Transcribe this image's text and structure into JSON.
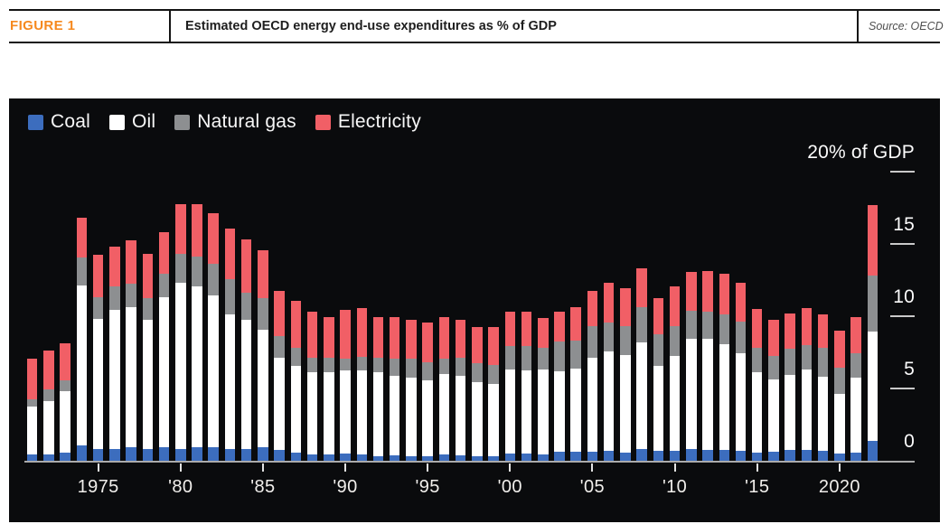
{
  "header": {
    "figure_label": "FIGURE 1",
    "title": "Estimated OECD energy end-use expenditures as % of GDP",
    "source": "Source: OECD"
  },
  "panel": {
    "background": "#0a0b0d"
  },
  "chart_data": {
    "type": "bar",
    "stacked": true,
    "title": "Estimated OECD energy end-use expenditures as % of GDP",
    "legend_position": "top-left",
    "grid": false,
    "ylim": [
      0,
      20
    ],
    "y_axis_top_label": "20% of GDP",
    "y_ticks": [
      {
        "value": 20,
        "label": "20% of GDP",
        "dash": true
      },
      {
        "value": 15,
        "label": "15",
        "dash": true
      },
      {
        "value": 10,
        "label": "10",
        "dash": true
      },
      {
        "value": 5,
        "label": "5",
        "dash": true
      },
      {
        "value": 0,
        "label": "0",
        "dash": false
      }
    ],
    "x": [
      1971,
      1972,
      1973,
      1974,
      1975,
      1976,
      1977,
      1978,
      1979,
      1980,
      1981,
      1982,
      1983,
      1984,
      1985,
      1986,
      1987,
      1988,
      1989,
      1990,
      1991,
      1992,
      1993,
      1994,
      1995,
      1996,
      1997,
      1998,
      1999,
      2000,
      2001,
      2002,
      2003,
      2004,
      2005,
      2006,
      2007,
      2008,
      2009,
      2010,
      2011,
      2012,
      2013,
      2014,
      2015,
      2016,
      2017,
      2018,
      2019,
      2020,
      2021,
      2022
    ],
    "x_ticks": [
      {
        "year": 1975,
        "label": "1975"
      },
      {
        "year": 1980,
        "label": "'80"
      },
      {
        "year": 1985,
        "label": "'85"
      },
      {
        "year": 1990,
        "label": "'90"
      },
      {
        "year": 1995,
        "label": "'95"
      },
      {
        "year": 2000,
        "label": "'00"
      },
      {
        "year": 2005,
        "label": "'05"
      },
      {
        "year": 2010,
        "label": "'10"
      },
      {
        "year": 2015,
        "label": "'15"
      },
      {
        "year": 2020,
        "label": "2020"
      }
    ],
    "series": [
      {
        "name": "Coal",
        "color": "#3C6DBE",
        "values": [
          0.5,
          0.5,
          0.6,
          1.1,
          0.9,
          0.9,
          1.0,
          0.9,
          1.0,
          0.9,
          1.0,
          1.0,
          0.9,
          0.9,
          1.0,
          0.8,
          0.6,
          0.5,
          0.5,
          0.55,
          0.5,
          0.4,
          0.45,
          0.4,
          0.4,
          0.5,
          0.45,
          0.4,
          0.4,
          0.55,
          0.55,
          0.5,
          0.7,
          0.7,
          0.7,
          0.75,
          0.6,
          0.85,
          0.75,
          0.75,
          0.85,
          0.8,
          0.8,
          0.75,
          0.65,
          0.7,
          0.8,
          0.8,
          0.75,
          0.55,
          0.6,
          1.45
        ]
      },
      {
        "name": "Oil",
        "color": "#FFFFFF",
        "values": [
          3.3,
          3.7,
          4.3,
          11.1,
          9.0,
          9.6,
          9.7,
          8.9,
          10.4,
          11.5,
          11.1,
          10.5,
          9.3,
          8.9,
          8.1,
          6.4,
          6.0,
          5.7,
          5.7,
          5.75,
          5.8,
          5.8,
          5.5,
          5.4,
          5.2,
          5.55,
          5.5,
          5.1,
          5.0,
          5.85,
          5.75,
          5.9,
          5.55,
          5.75,
          6.5,
          6.85,
          6.8,
          7.4,
          5.85,
          6.55,
          7.65,
          7.7,
          7.35,
          6.75,
          5.55,
          5.0,
          5.2,
          5.55,
          5.15,
          4.15,
          5.2,
          7.55
        ]
      },
      {
        "name": "Natural gas",
        "color": "#8D8F91",
        "values": [
          0.5,
          0.8,
          0.7,
          1.9,
          1.5,
          1.6,
          1.6,
          1.5,
          1.6,
          2.0,
          2.1,
          2.2,
          2.4,
          1.9,
          2.2,
          1.5,
          1.3,
          1.0,
          1.0,
          0.8,
          0.95,
          1.0,
          1.15,
          1.35,
          1.3,
          1.05,
          1.25,
          1.3,
          1.3,
          1.6,
          1.7,
          1.45,
          2.05,
          1.95,
          2.2,
          2.0,
          2.0,
          2.45,
          2.2,
          2.1,
          1.95,
          1.9,
          2.05,
          2.2,
          1.7,
          1.6,
          1.8,
          1.7,
          1.95,
          1.8,
          1.7,
          3.9
        ]
      },
      {
        "name": "Electricity",
        "color": "#F15F66",
        "values": [
          2.8,
          2.7,
          2.6,
          2.8,
          2.9,
          2.8,
          3.0,
          3.1,
          2.9,
          3.4,
          3.6,
          3.5,
          3.5,
          3.7,
          3.3,
          3.1,
          3.2,
          3.2,
          2.8,
          3.4,
          3.35,
          2.8,
          2.9,
          2.65,
          2.7,
          2.9,
          2.6,
          2.5,
          2.6,
          2.35,
          2.35,
          2.1,
          2.1,
          2.3,
          2.4,
          2.8,
          2.6,
          2.7,
          2.5,
          2.7,
          2.65,
          2.8,
          2.8,
          2.7,
          2.65,
          2.5,
          2.45,
          2.55,
          2.35,
          2.55,
          2.5,
          4.85
        ]
      }
    ]
  }
}
